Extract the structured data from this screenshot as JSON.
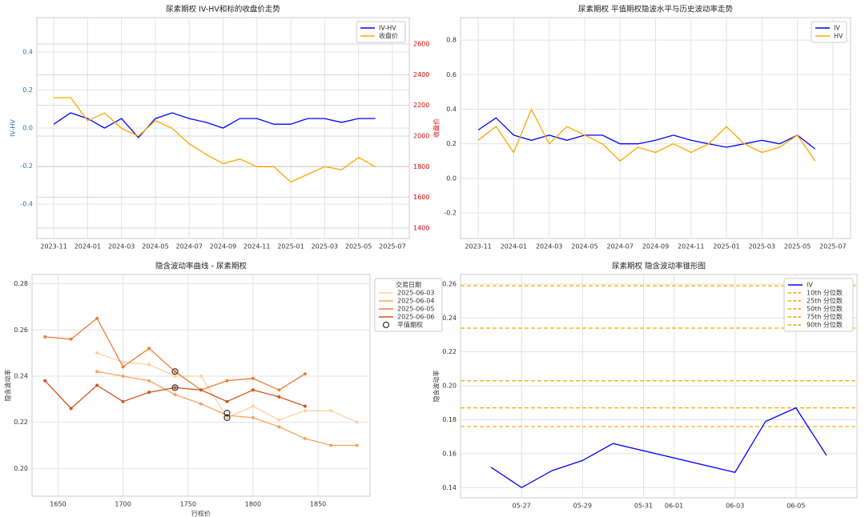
{
  "chart_data": [
    {
      "type": "line",
      "title": "尿素期权 IV-HV和标的收盘价走势",
      "x": [
        "2023-11",
        "2023-12",
        "2024-01",
        "2024-02",
        "2024-03",
        "2024-04",
        "2024-05",
        "2024-06",
        "2024-07",
        "2024-08",
        "2024-09",
        "2024-10",
        "2024-11",
        "2024-12",
        "2025-01",
        "2025-02",
        "2025-03",
        "2025-04",
        "2025-05",
        "2025-06"
      ],
      "series": [
        {
          "name": "IV-HV",
          "color": "#0000ff",
          "values": [
            0.02,
            0.08,
            0.05,
            0.0,
            0.05,
            -0.05,
            0.05,
            0.08,
            0.05,
            0.03,
            0.0,
            0.05,
            0.05,
            0.02,
            0.02,
            0.05,
            0.05,
            0.03,
            0.05,
            0.05
          ]
        },
        {
          "name": "收盘价",
          "color": "#ffa500",
          "axis": "y2",
          "values": [
            2250,
            2250,
            2100,
            2150,
            2050,
            2000,
            2100,
            2050,
            1950,
            1880,
            1820,
            1850,
            1800,
            1800,
            1700,
            1750,
            1800,
            1780,
            1860,
            1800
          ]
        }
      ],
      "xlim": [
        "2023-10",
        "2025-08"
      ],
      "xticks": [
        "2023-11",
        "2024-01",
        "2024-03",
        "2024-05",
        "2024-07",
        "2024-09",
        "2024-11",
        "2025-01",
        "2025-03",
        "2025-05",
        "2025-07"
      ],
      "ylim": [
        -0.58,
        0.58
      ],
      "yticks": [
        -0.4,
        -0.2,
        {
          "value": 0,
          "label": "0.0"
        },
        0.2,
        0.4
      ],
      "y2lim": [
        1332,
        2772
      ],
      "y2ticks": [
        1400,
        1600,
        1800,
        2000,
        2200,
        2400,
        2600
      ],
      "ylabel": "IV-HV",
      "y2label": "收盘价",
      "ytick_color": "#1f77b4",
      "y2tick_color": "#e00000",
      "grid": true,
      "legend": "upper right"
    },
    {
      "type": "line",
      "title": "尿素期权 平值期权隐波水平与历史波动率走势",
      "x": [
        "2023-11",
        "2023-12",
        "2024-01",
        "2024-02",
        "2024-03",
        "2024-04",
        "2024-05",
        "2024-06",
        "2024-07",
        "2024-08",
        "2024-09",
        "2024-10",
        "2024-11",
        "2024-12",
        "2025-01",
        "2025-02",
        "2025-03",
        "2025-04",
        "2025-05",
        "2025-06"
      ],
      "series": [
        {
          "name": "IV",
          "color": "#0000ff",
          "values": [
            0.28,
            0.35,
            0.25,
            0.22,
            0.25,
            0.22,
            0.25,
            0.25,
            0.2,
            0.2,
            0.22,
            0.25,
            0.22,
            0.2,
            0.18,
            0.2,
            0.22,
            0.2,
            0.25,
            0.17
          ]
        },
        {
          "name": "HV",
          "color": "#ffa500",
          "values": [
            0.22,
            0.3,
            0.15,
            0.4,
            0.2,
            0.3,
            0.25,
            0.2,
            0.1,
            0.18,
            0.15,
            0.2,
            0.15,
            0.2,
            0.3,
            0.2,
            0.15,
            0.18,
            0.25,
            0.1
          ]
        }
      ],
      "xlim": [
        "2023-10",
        "2025-08"
      ],
      "xticks": [
        "2023-11",
        "2024-01",
        "2024-03",
        "2024-05",
        "2024-07",
        "2024-09",
        "2024-11",
        "2025-01",
        "2025-03",
        "2025-05",
        "2025-07"
      ],
      "ylim": [
        -0.348,
        0.93
      ],
      "yticks": [
        -0.2,
        {
          "value": 0,
          "label": "0.0"
        },
        0.2,
        0.4,
        0.6,
        0.8
      ],
      "grid": true,
      "legend": "upper right"
    },
    {
      "type": "line",
      "title": "隐含波动率曲线 - 尿素期权",
      "xlabel": "行权价",
      "ylabel": "隐含波动率",
      "legend_title": "交易日期",
      "legend": "outside right",
      "markers": true,
      "series": [
        {
          "name": "2025-06-03",
          "color": "#fdd0a2",
          "x": [
            1680,
            1700,
            1720,
            1740,
            1760,
            1780,
            1800,
            1820,
            1840,
            1860,
            1880
          ],
          "values": [
            0.25,
            0.246,
            0.245,
            0.24,
            0.24,
            0.222,
            0.227,
            0.221,
            0.225,
            0.225,
            0.22
          ]
        },
        {
          "name": "2025-06-04",
          "color": "#f9a25e",
          "x": [
            1680,
            1700,
            1720,
            1740,
            1760,
            1780,
            1800,
            1820,
            1840,
            1860,
            1880
          ],
          "values": [
            0.242,
            0.24,
            0.238,
            0.232,
            0.228,
            0.223,
            0.222,
            0.218,
            0.213,
            0.21,
            0.21
          ]
        },
        {
          "name": "2025-06-05",
          "color": "#f07c38",
          "x": [
            1640,
            1660,
            1680,
            1700,
            1720,
            1740,
            1760,
            1780,
            1800,
            1820,
            1840
          ],
          "values": [
            0.257,
            0.256,
            0.265,
            0.244,
            0.252,
            0.242,
            0.234,
            0.238,
            0.239,
            0.234,
            0.241
          ]
        },
        {
          "name": "2025-06-06",
          "color": "#d4541b",
          "x": [
            1640,
            1660,
            1680,
            1700,
            1720,
            1740,
            1760,
            1780,
            1800,
            1820,
            1840
          ],
          "values": [
            0.238,
            0.226,
            0.236,
            0.229,
            0.233,
            0.235,
            0.234,
            0.229,
            0.234,
            0.231,
            0.227
          ]
        }
      ],
      "highlight": {
        "name": "平值期权",
        "x": [
          1740,
          1740,
          1780,
          1780
        ],
        "values": [
          0.242,
          0.235,
          0.224,
          0.222
        ]
      },
      "xlim": [
        1630,
        1890
      ],
      "xticks": [
        1650,
        1700,
        1750,
        1800,
        1850
      ],
      "ylim": [
        0.188,
        0.284
      ],
      "yticks": [
        {
          "value": 0.2,
          "label": "0.20"
        },
        0.22,
        0.24,
        0.26,
        0.28
      ],
      "grid": true
    },
    {
      "type": "line",
      "title": "尿素期权 隐含波动率锥形图",
      "ylabel": "隐含波动率",
      "x": [
        "05-26",
        "05-27",
        "05-28",
        "05-29",
        "05-30",
        "06-03",
        "06-04",
        "06-05",
        "06-06"
      ],
      "series": [
        {
          "name": "IV",
          "color": "#0000ff",
          "values": [
            0.152,
            0.14,
            0.15,
            0.156,
            0.166,
            0.149,
            0.179,
            0.187,
            0.159
          ]
        }
      ],
      "reference_lines": [
        {
          "name": "10th 分位数",
          "value": 0.176,
          "color": "#ffa500"
        },
        {
          "name": "25th 分位数",
          "value": 0.187,
          "color": "#ffa500"
        },
        {
          "name": "50th 分位数",
          "value": 0.203,
          "color": "#ffa500"
        },
        {
          "name": "75th 分位数",
          "value": 0.234,
          "color": "#ffa500"
        },
        {
          "name": "90th 分位数",
          "value": 0.259,
          "color": "#ffa500"
        }
      ],
      "xlim": [
        "05-25",
        "06-07"
      ],
      "xticks": [
        "05-27",
        "05-29",
        "05-31",
        "06-01",
        "06-03",
        "06-05"
      ],
      "ylim": [
        0.134,
        0.2656
      ],
      "yticks": [
        0.14,
        0.16,
        0.18,
        {
          "value": 0.2,
          "label": "0.20"
        },
        0.22,
        0.24,
        0.26
      ],
      "grid": true,
      "legend": "upper right"
    }
  ]
}
